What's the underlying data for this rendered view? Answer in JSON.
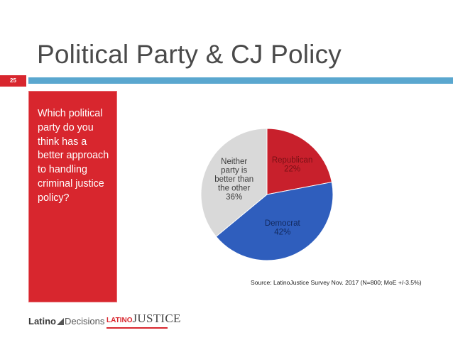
{
  "slide": {
    "title": "Political Party & CJ Policy",
    "number": "25",
    "question": "Which political party do you think has a better approach to handling criminal justice policy?",
    "source": "Source: LatinoJustice Survey Nov. 2017 (N=800; MoE +/-3.5%)",
    "colors": {
      "accent_red": "#d8262e",
      "rule_blue": "#5aa7cf",
      "title_gray": "#4a4a4a"
    }
  },
  "logos": {
    "latino_decisions": "Latino Decisions",
    "latino_justice": "LATINOJUSTICE"
  },
  "chart_data": {
    "type": "pie",
    "title": "",
    "start": "12 o'clock, clockwise",
    "slices": [
      {
        "label_lines": [
          "Republican",
          "22%"
        ],
        "label": "Republican",
        "value": 22,
        "color": "#c8202c",
        "text_color": "#7a1015"
      },
      {
        "label_lines": [
          "Democrat",
          "42%"
        ],
        "label": "Democrat",
        "value": 42,
        "color": "#2f5ebd",
        "text_color": "#12295e"
      },
      {
        "label_lines": [
          "Neither",
          "party is",
          "better than",
          "the other",
          "36%"
        ],
        "label": "Neither party is better than the other",
        "value": 36,
        "color": "#d9d9d9",
        "text_color": "#3d3d3d"
      }
    ]
  }
}
